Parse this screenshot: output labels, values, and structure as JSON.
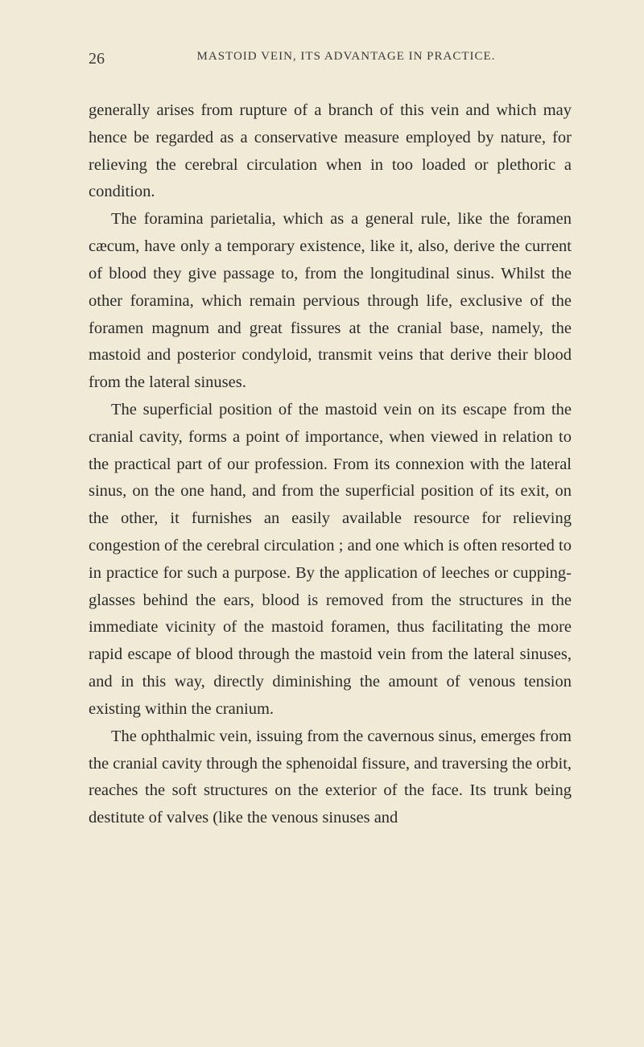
{
  "page_number": "26",
  "header": "MASTOID VEIN, ITS ADVANTAGE IN PRACTICE.",
  "paragraphs": [
    "generally arises from rupture of a branch of this vein and which may hence be regarded as a conservative measure employed by nature, for relieving the cerebral circulation when in too loaded or plethoric a condition.",
    "The foramina parietalia, which as a general rule, like the foramen cæcum, have only a temporary existence, like it, also, derive the current of blood they give passage to, from the longitudinal sinus. Whilst the other foramina, which remain pervious through life, exclusive of the foramen magnum and great fissures at the cranial base, namely, the mastoid and posterior condyloid, transmit veins that derive their blood from the lateral sinuses.",
    "The superficial position of the mastoid vein on its escape from the cranial cavity, forms a point of importance, when viewed in relation to the practical part of our profession. From its connexion with the lateral sinus, on the one hand, and from the superficial position of its exit, on the other, it furnishes an easily available resource for relieving congestion of the cerebral circulation ; and one which is often resorted to in practice for such a purpose. By the application of leeches or cupping-glasses behind the ears, blood is removed from the structures in the immediate vicinity of the mastoid foramen, thus facilitating the more rapid escape of blood through the mastoid vein from the lateral sinuses, and in this way, directly diminishing the amount of venous tension existing within the cranium.",
    "The ophthalmic vein, issuing from the cavernous sinus, emerges from the cranial cavity through the sphenoidal fissure, and traversing the orbit, reaches the soft structures on the exterior of the face. Its trunk being destitute of valves (like the venous sinuses and"
  ],
  "colors": {
    "background": "#f0ead6",
    "text": "#2a2a2a",
    "header_text": "#3a3a3a"
  },
  "typography": {
    "body_font_size": 20.5,
    "header_font_size": 15,
    "page_number_font_size": 20,
    "line_height": 1.65,
    "text_indent": 28
  }
}
